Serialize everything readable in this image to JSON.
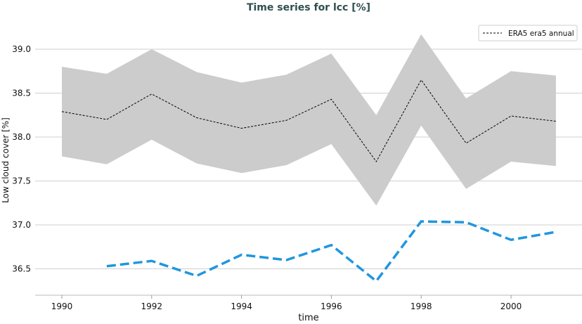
{
  "chart_data": {
    "type": "line",
    "title": "Time series for lcc [%]",
    "xlabel": "time",
    "ylabel": "Low cloud cover [%]",
    "xlim": [
      1989.4,
      2002.5
    ],
    "ylim": [
      36.23,
      39.55
    ],
    "x_ticks": [
      1990,
      1992,
      1994,
      1996,
      1998,
      2000
    ],
    "y_ticks": [
      36.5,
      37.0,
      37.5,
      38.0,
      38.5,
      39.0
    ],
    "y_tick_labels": [
      "36.5",
      "37.0",
      "37.5",
      "38.0",
      "38.5",
      "39.0"
    ],
    "grid": "horizontal",
    "legend_position": "top-right",
    "colors": {
      "mean": "#000000",
      "band": "#cccccc",
      "blue": "#2196de",
      "title": "#2f4f4f"
    },
    "series": [
      {
        "name": "ERA5 era5 annual",
        "style": "thin-dashed",
        "x": [
          1990,
          1991,
          1992,
          1993,
          1994,
          1995,
          1996,
          1997,
          1998,
          1999,
          2000,
          2001
        ],
        "values": [
          38.29,
          38.2,
          38.49,
          38.22,
          38.1,
          38.19,
          38.43,
          37.72,
          38.65,
          37.93,
          38.24,
          38.18
        ],
        "band_upper": [
          38.8,
          38.72,
          39.0,
          38.74,
          38.62,
          38.71,
          38.95,
          38.25,
          39.17,
          38.44,
          38.75,
          38.7
        ],
        "band_lower": [
          37.78,
          37.69,
          37.97,
          37.7,
          37.59,
          37.68,
          37.92,
          37.22,
          38.13,
          37.41,
          37.72,
          37.67
        ]
      },
      {
        "style": "thick-dashed",
        "x": [
          1991,
          1992,
          1993,
          1994,
          1995,
          1996,
          1997,
          1998,
          1999,
          2000,
          2001
        ],
        "values": [
          36.53,
          36.59,
          36.42,
          36.66,
          36.6,
          36.77,
          36.36,
          37.04,
          37.03,
          36.83,
          36.92
        ]
      }
    ]
  }
}
